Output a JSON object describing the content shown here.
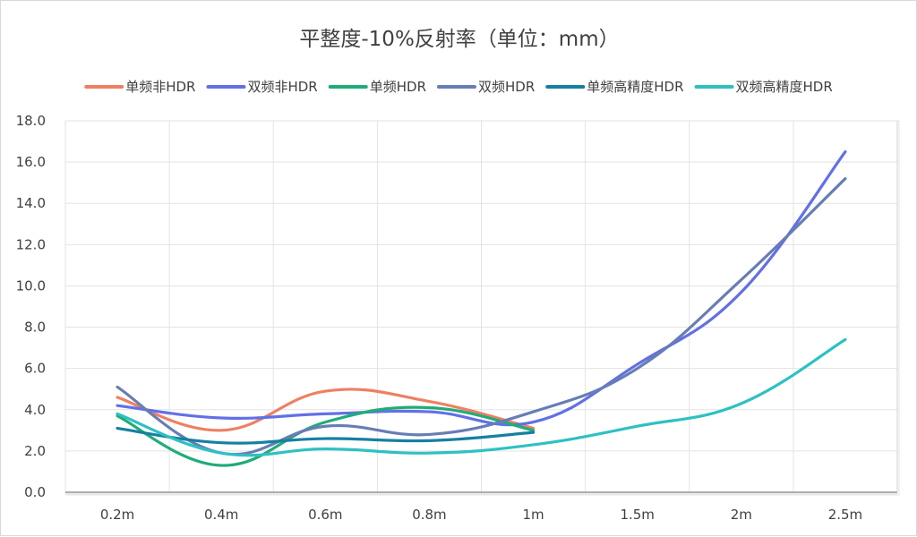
{
  "chart_data": {
    "type": "line",
    "title": "平整度-10%反射率（单位：mm）",
    "xlabel": "",
    "ylabel": "",
    "categories": [
      "0.2m",
      "0.4m",
      "0.6m",
      "0.8m",
      "1m",
      "1.5m",
      "2m",
      "2.5m"
    ],
    "ylim": [
      0,
      18
    ],
    "y_ticks": [
      "0.0",
      "2.0",
      "4.0",
      "6.0",
      "8.0",
      "10.0",
      "12.0",
      "14.0",
      "16.0",
      "18.0"
    ],
    "y_tick_values": [
      0,
      2,
      4,
      6,
      8,
      10,
      12,
      14,
      16,
      18
    ],
    "grid": true,
    "smooth": true,
    "legend_position": "top",
    "series": [
      {
        "name": "单频非HDR",
        "color": "#EE8062",
        "values": [
          4.6,
          3.0,
          4.9,
          4.4,
          3.1,
          null,
          null,
          null
        ]
      },
      {
        "name": "双频非HDR",
        "color": "#6270E6",
        "values": [
          4.2,
          3.6,
          3.8,
          3.9,
          3.4,
          6.2,
          9.7,
          16.5
        ]
      },
      {
        "name": "单频HDR",
        "color": "#20AC78",
        "values": [
          3.7,
          1.3,
          3.4,
          4.1,
          3.0,
          null,
          null,
          null
        ]
      },
      {
        "name": "双频HDR",
        "color": "#677DB4",
        "values": [
          5.1,
          1.9,
          3.2,
          2.8,
          3.9,
          6.0,
          10.3,
          15.2
        ]
      },
      {
        "name": "单频高精度HDR",
        "color": "#1580A2",
        "values": [
          3.1,
          2.4,
          2.6,
          2.5,
          2.9,
          null,
          null,
          null
        ]
      },
      {
        "name": "双频高精度HDR",
        "color": "#2FC0C2",
        "values": [
          3.8,
          1.9,
          2.1,
          1.9,
          2.3,
          3.2,
          4.3,
          7.4
        ]
      }
    ]
  }
}
